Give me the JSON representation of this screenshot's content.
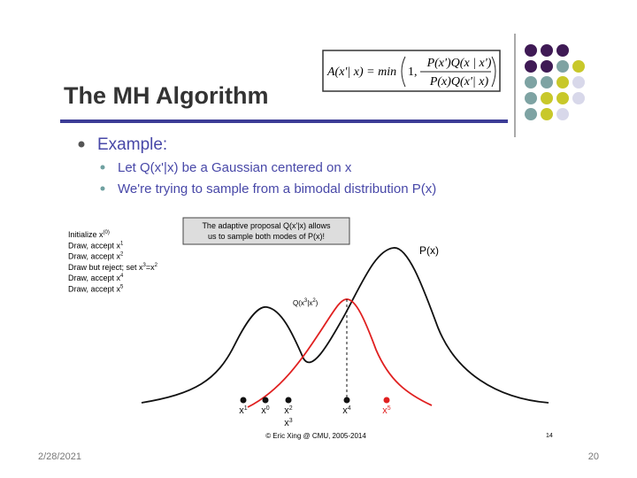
{
  "header": {
    "title": "The MH Algorithm"
  },
  "formula": {
    "lhs": "A(x'| x) = min",
    "one": "1,",
    "numerator": "P(x')Q(x | x')",
    "denominator": "P(x)Q(x'| x)"
  },
  "bullets": {
    "main": "Example:",
    "sub": [
      "Let Q(x'|x) be a Gaussian centered on x",
      "We're trying to sample from a bimodal distribution P(x)"
    ]
  },
  "figure": {
    "steps": [
      [
        "Initialize x",
        "(0)"
      ],
      [
        "Draw, accept x",
        "1"
      ],
      [
        "Draw, accept x",
        "2"
      ],
      [
        "Draw but reject; set x",
        "3",
        "=x",
        "2"
      ],
      [
        "Draw, accept x",
        "4"
      ],
      [
        "Draw, accept x",
        "5"
      ]
    ],
    "note": [
      "The adaptive proposal Q(x'|x) allows",
      "us to sample both modes of P(x)!"
    ],
    "p_label": "P(x)",
    "q_label": [
      "Q(x",
      "3",
      "|x",
      "2",
      ")"
    ],
    "samples": [
      [
        "x",
        "1"
      ],
      [
        "x",
        "0"
      ],
      [
        "x",
        "2"
      ],
      [
        "x",
        "3"
      ],
      [
        "x",
        "4"
      ],
      [
        "x",
        "5"
      ]
    ],
    "credit": "© Eric Xing @ CMU, 2005-2014",
    "slide_number": "14"
  },
  "footer": {
    "date": "2/28/2021",
    "page": "20"
  }
}
